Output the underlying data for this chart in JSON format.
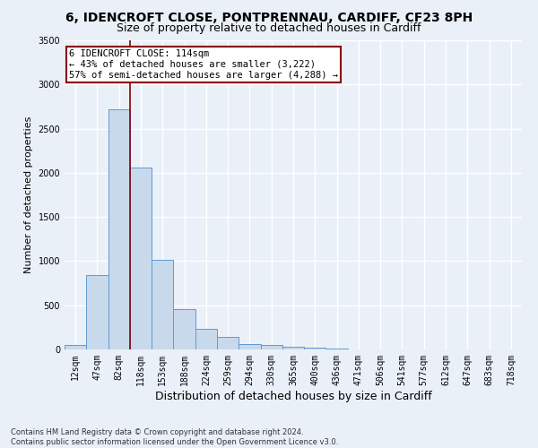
{
  "title1": "6, IDENCROFT CLOSE, PONTPRENNAU, CARDIFF, CF23 8PH",
  "title2": "Size of property relative to detached houses in Cardiff",
  "xlabel": "Distribution of detached houses by size in Cardiff",
  "ylabel": "Number of detached properties",
  "footnote": "Contains HM Land Registry data © Crown copyright and database right 2024.\nContains public sector information licensed under the Open Government Licence v3.0.",
  "bar_labels": [
    "12sqm",
    "47sqm",
    "82sqm",
    "118sqm",
    "153sqm",
    "188sqm",
    "224sqm",
    "259sqm",
    "294sqm",
    "330sqm",
    "365sqm",
    "400sqm",
    "436sqm",
    "471sqm",
    "506sqm",
    "541sqm",
    "577sqm",
    "612sqm",
    "647sqm",
    "683sqm",
    "718sqm"
  ],
  "bar_values": [
    55,
    840,
    2720,
    2060,
    1010,
    455,
    230,
    145,
    65,
    50,
    30,
    25,
    10,
    0,
    0,
    0,
    0,
    0,
    0,
    0,
    0
  ],
  "bar_color": "#c9d9ec",
  "bar_edge_color": "#5b9bd5",
  "vline_x": 2.5,
  "vline_color": "#8b0000",
  "annotation_line1": "6 IDENCROFT CLOSE: 114sqm",
  "annotation_line2": "← 43% of detached houses are smaller (3,222)",
  "annotation_line3": "57% of semi-detached houses are larger (4,288) →",
  "annotation_box_color": "#ffffff",
  "annotation_box_edge": "#8b0000",
  "ylim": [
    0,
    3500
  ],
  "yticks": [
    0,
    500,
    1000,
    1500,
    2000,
    2500,
    3000,
    3500
  ],
  "background_color": "#eaf0f8",
  "grid_color": "#ffffff",
  "title1_fontsize": 10,
  "title2_fontsize": 9,
  "xlabel_fontsize": 9,
  "ylabel_fontsize": 8,
  "tick_fontsize": 7,
  "annot_fontsize": 7.5,
  "footnote_fontsize": 6
}
